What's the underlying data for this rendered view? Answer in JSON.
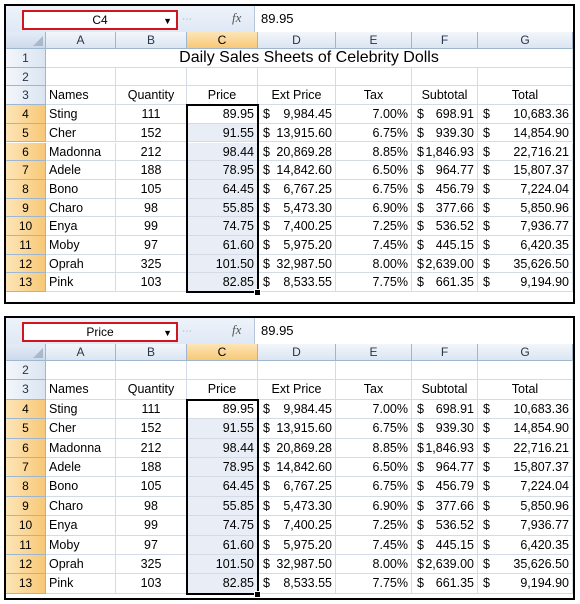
{
  "columns": [
    "A",
    "B",
    "C",
    "D",
    "E",
    "F",
    "G"
  ],
  "top_sheet": {
    "name_box": "C4",
    "formula_value": "89.95",
    "title": "Daily Sales Sheets of Celebrity Dolls",
    "row_numbers": [
      "1",
      "2",
      "3",
      "4",
      "5",
      "6",
      "7",
      "8",
      "9",
      "10",
      "11",
      "12",
      "13"
    ]
  },
  "bottom_sheet": {
    "name_box": "Price",
    "formula_value": "89.95",
    "row_numbers": [
      "2",
      "3",
      "4",
      "5",
      "6",
      "7",
      "8",
      "9",
      "10",
      "11",
      "12",
      "13"
    ]
  },
  "headers": [
    "Names",
    "Quantity",
    "Price",
    "Ext Price",
    "Tax",
    "Subtotal",
    "Total"
  ],
  "rows": [
    {
      "name": "Sting",
      "qty": "111",
      "price": "89.95",
      "ext": "9,984.45",
      "tax": "7.00%",
      "sub": "698.91",
      "total": "10,683.36"
    },
    {
      "name": "Cher",
      "qty": "152",
      "price": "91.55",
      "ext": "13,915.60",
      "tax": "6.75%",
      "sub": "939.30",
      "total": "14,854.90"
    },
    {
      "name": "Madonna",
      "qty": "212",
      "price": "98.44",
      "ext": "20,869.28",
      "tax": "8.85%",
      "sub": "1,846.93",
      "total": "22,716.21"
    },
    {
      "name": "Adele",
      "qty": "188",
      "price": "78.95",
      "ext": "14,842.60",
      "tax": "6.50%",
      "sub": "964.77",
      "total": "15,807.37"
    },
    {
      "name": "Bono",
      "qty": "105",
      "price": "64.45",
      "ext": "6,767.25",
      "tax": "6.75%",
      "sub": "456.79",
      "total": "7,224.04"
    },
    {
      "name": "Charo",
      "qty": "98",
      "price": "55.85",
      "ext": "5,473.30",
      "tax": "6.90%",
      "sub": "377.66",
      "total": "5,850.96"
    },
    {
      "name": "Enya",
      "qty": "99",
      "price": "74.75",
      "ext": "7,400.25",
      "tax": "7.25%",
      "sub": "536.52",
      "total": "7,936.77"
    },
    {
      "name": "Moby",
      "qty": "97",
      "price": "61.60",
      "ext": "5,975.20",
      "tax": "7.45%",
      "sub": "445.15",
      "total": "6,420.35"
    },
    {
      "name": "Oprah",
      "qty": "325",
      "price": "101.50",
      "ext": "32,987.50",
      "tax": "8.00%",
      "sub": "2,639.00",
      "total": "35,626.50"
    },
    {
      "name": "Pink",
      "qty": "103",
      "price": "82.85",
      "ext": "8,533.55",
      "tax": "7.75%",
      "sub": "661.35",
      "total": "9,194.90"
    }
  ],
  "currency": "$",
  "colors": {
    "namebox_border": "#d0161c",
    "selected_header": "#f8c877",
    "price_fill": "#e8edf6"
  },
  "icons": {
    "dropdown": "chevron-down-icon",
    "function": "fx-icon"
  }
}
